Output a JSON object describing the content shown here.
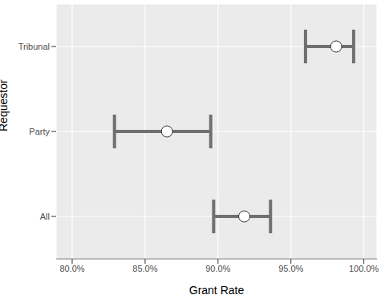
{
  "chart_data": {
    "type": "dot",
    "xlabel": "Grant Rate",
    "ylabel": "Requestor",
    "categories": [
      "Tribunal",
      "Party",
      "All"
    ],
    "values": [
      98.1,
      86.5,
      91.8
    ],
    "lower": [
      96.0,
      82.9,
      89.7
    ],
    "upper": [
      99.3,
      89.5,
      93.6
    ],
    "xlim": [
      78.9,
      100.9
    ],
    "xticks": [
      {
        "value": 80,
        "label": "80.0%"
      },
      {
        "value": 85,
        "label": "85.0%"
      },
      {
        "value": 90,
        "label": "90.0%"
      },
      {
        "value": 95,
        "label": "95.0%"
      },
      {
        "value": 100,
        "label": "100.0%"
      }
    ],
    "grid": true
  }
}
